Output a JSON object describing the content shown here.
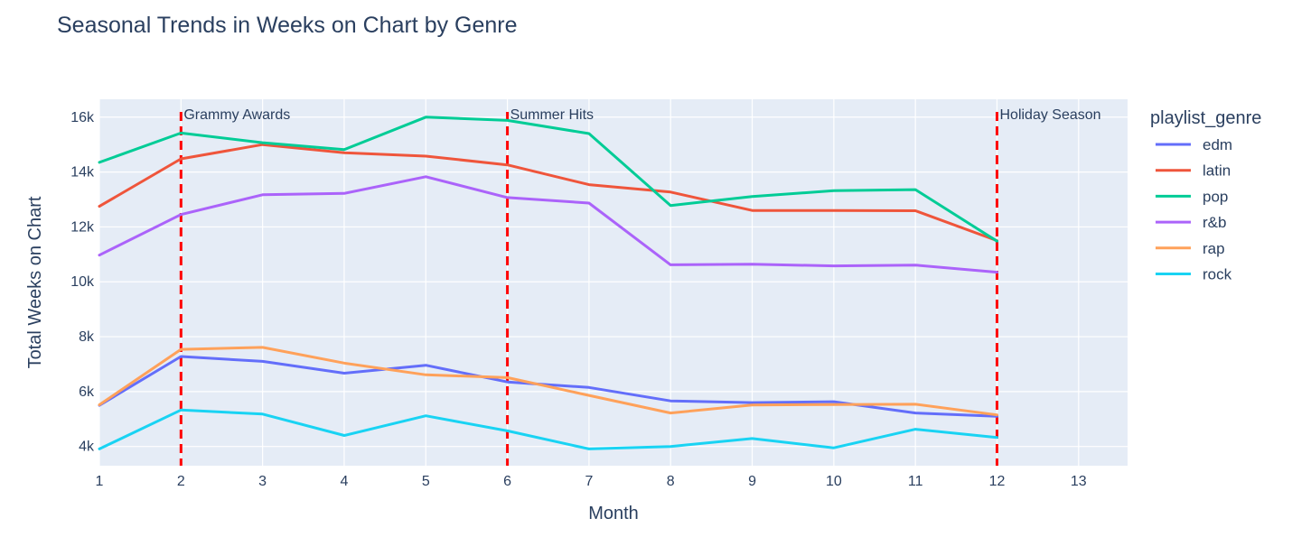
{
  "chart_data": {
    "type": "line",
    "title": "Seasonal Trends in Weeks on Chart by Genre",
    "xlabel": "Month",
    "ylabel": "Total Weeks on Chart",
    "x": [
      1,
      2,
      3,
      4,
      5,
      6,
      7,
      8,
      9,
      10,
      11,
      12
    ],
    "xlim": [
      1,
      13.6
    ],
    "ylim": [
      3300,
      16650
    ],
    "x_ticks": [
      "1",
      "2",
      "3",
      "4",
      "5",
      "6",
      "7",
      "8",
      "9",
      "10",
      "11",
      "12",
      "13"
    ],
    "y_ticks": [
      {
        "value": 4000,
        "label": "4k"
      },
      {
        "value": 6000,
        "label": "6k"
      },
      {
        "value": 8000,
        "label": "8k"
      },
      {
        "value": 10000,
        "label": "10k"
      },
      {
        "value": 12000,
        "label": "12k"
      },
      {
        "value": 14000,
        "label": "14k"
      },
      {
        "value": 16000,
        "label": "16k"
      }
    ],
    "grid": true,
    "legend": {
      "title": "playlist_genre",
      "position": "right"
    },
    "series": [
      {
        "name": "edm",
        "color": "#636efa",
        "values": [
          5500,
          7280,
          7100,
          6670,
          6960,
          6350,
          6150,
          5660,
          5600,
          5630,
          5220,
          5100
        ]
      },
      {
        "name": "latin",
        "color": "#ef553b",
        "values": [
          12750,
          14480,
          15000,
          14700,
          14580,
          14260,
          13540,
          13270,
          12600,
          12600,
          12590,
          11500
        ]
      },
      {
        "name": "pop",
        "color": "#00cc96",
        "values": [
          14350,
          15420,
          15070,
          14820,
          16000,
          15880,
          15400,
          12780,
          13110,
          13320,
          13360,
          11480
        ]
      },
      {
        "name": "r&b",
        "color": "#ab63fa",
        "values": [
          10970,
          12450,
          13170,
          13220,
          13830,
          13070,
          12870,
          10620,
          10640,
          10580,
          10610,
          10350
        ]
      },
      {
        "name": "rap",
        "color": "#ffa15a",
        "values": [
          5520,
          7540,
          7610,
          7040,
          6610,
          6510,
          5860,
          5220,
          5510,
          5530,
          5540,
          5150
        ]
      },
      {
        "name": "rock",
        "color": "#19d3f3",
        "values": [
          3910,
          5330,
          5180,
          4400,
          5120,
          4570,
          3910,
          4000,
          4290,
          3950,
          4630,
          4330
        ]
      }
    ],
    "annotations": [
      {
        "x": 2,
        "text": "Grammy Awards",
        "line_color": "#ff0000"
      },
      {
        "x": 6,
        "text": "Summer Hits",
        "line_color": "#ff0000"
      },
      {
        "x": 12,
        "text": "Holiday Season",
        "line_color": "#ff0000"
      }
    ]
  },
  "colors": {
    "plot_background": "#e5ecf6",
    "gridline": "#ffffff",
    "text": "#2a3f5f",
    "annotation_text": "#2a3f5f"
  }
}
